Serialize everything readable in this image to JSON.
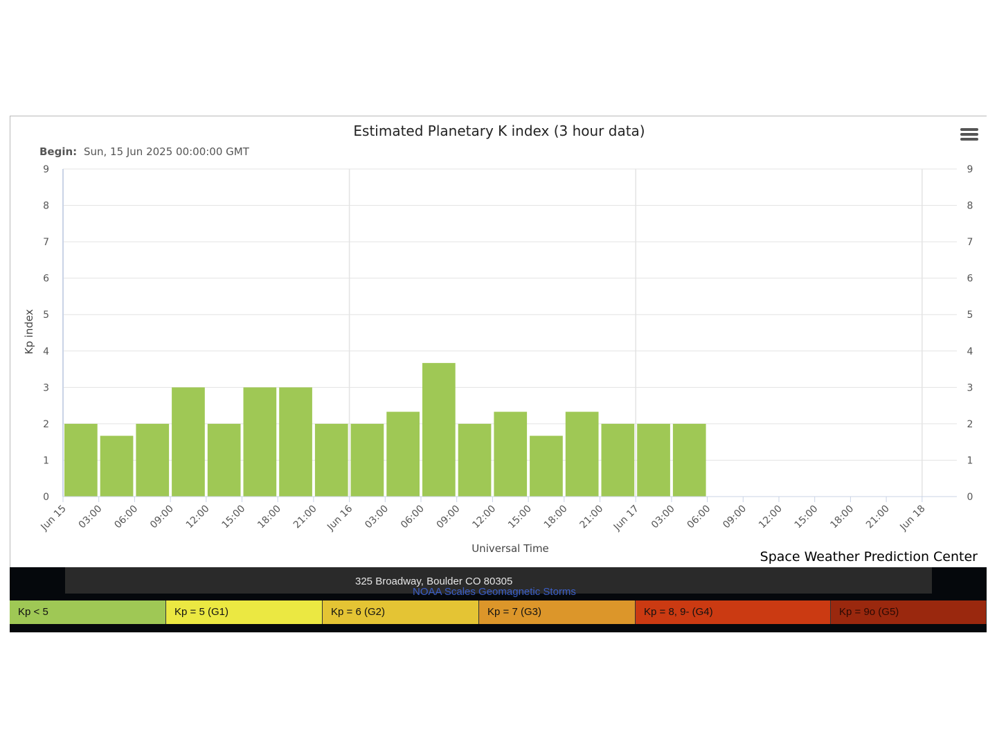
{
  "chart_data": {
    "type": "bar",
    "title": "Estimated Planetary K index (3 hour data)",
    "subtitle_label": "Begin:",
    "subtitle_value": "Sun, 15 Jun 2025 00:00:00 GMT",
    "xlabel": "Universal Time",
    "ylabel": "Kp index",
    "ylim": [
      0,
      9
    ],
    "y_ticks": [
      "0",
      "1",
      "2",
      "3",
      "4",
      "5",
      "6",
      "7",
      "8",
      "9"
    ],
    "x_range": [
      "Jun 15 00:00",
      "Jun 18 06:00"
    ],
    "x_tick_labels": [
      "Jun 15",
      "03:00",
      "06:00",
      "09:00",
      "12:00",
      "15:00",
      "18:00",
      "21:00",
      "Jun 16",
      "03:00",
      "06:00",
      "09:00",
      "12:00",
      "15:00",
      "18:00",
      "21:00",
      "Jun 17",
      "03:00",
      "06:00",
      "09:00",
      "12:00",
      "15:00",
      "18:00",
      "21:00",
      "Jun 18"
    ],
    "x": [
      "Jun 15 00:00",
      "Jun 15 03:00",
      "Jun 15 06:00",
      "Jun 15 09:00",
      "Jun 15 12:00",
      "Jun 15 15:00",
      "Jun 15 18:00",
      "Jun 15 21:00",
      "Jun 16 00:00",
      "Jun 16 03:00",
      "Jun 16 06:00",
      "Jun 16 09:00",
      "Jun 16 12:00",
      "Jun 16 15:00",
      "Jun 16 18:00",
      "Jun 16 21:00",
      "Jun 17 00:00",
      "Jun 17 03:00"
    ],
    "values": [
      2.0,
      1.67,
      2.0,
      3.0,
      2.0,
      3.0,
      3.0,
      2.0,
      2.0,
      2.33,
      3.67,
      2.0,
      2.33,
      1.67,
      2.33,
      2.0,
      2.0,
      2.0
    ],
    "bar_color": "#9fc855",
    "grid": true,
    "secondary_y_axis": true
  },
  "menu_icon": "hamburger-menu-icon",
  "credit": "Space Weather Prediction Center",
  "footer": {
    "address": "325 Broadway, Boulder CO 80305",
    "link": "NOAA Scales Geomagnetic Storms",
    "scale": [
      {
        "label": "Kp < 5",
        "color": "#9fc855",
        "text_color": "#111111"
      },
      {
        "label": "Kp = 5 (G1)",
        "color": "#ebe842",
        "text_color": "#111111"
      },
      {
        "label": "Kp = 6 (G2)",
        "color": "#e4c434",
        "text_color": "#111111"
      },
      {
        "label": "Kp = 7 (G3)",
        "color": "#dc962a",
        "text_color": "#111111"
      },
      {
        "label": "Kp = 8, 9- (G4)",
        "color": "#cb3a12",
        "text_color": "#111111"
      },
      {
        "label": "Kp = 9o (G5)",
        "color": "#9a280e",
        "text_color": "#2a0a04"
      }
    ]
  }
}
